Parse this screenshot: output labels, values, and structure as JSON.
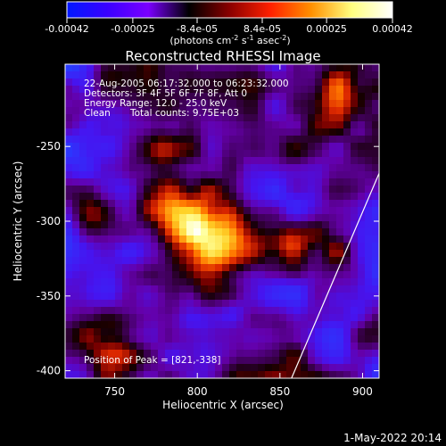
{
  "colorbar": {
    "ticks": [
      "-0.00042",
      "-0.00025",
      "-8.4e-05",
      "8.4e-05",
      "0.00025",
      "0.00042"
    ],
    "unit_main": "(photons cm",
    "unit_sup1": "-2",
    "unit_mid1": " s",
    "unit_sup2": "-1",
    "unit_mid2": " asec",
    "unit_sup3": "-2",
    "unit_end": ")",
    "colors": [
      "#0018ff",
      "#3a00ff",
      "#7a00ff",
      "#000000",
      "#8a0000",
      "#ff2000",
      "#ff9000",
      "#ffff80",
      "#ffffff"
    ]
  },
  "chart_data": {
    "type": "heatmap",
    "title": "Reconstructed RHESSI Image",
    "xlabel": "Heliocentric X (arcsec)",
    "ylabel": "Heliocentric Y (arcsec)",
    "xlim": [
      720,
      910
    ],
    "ylim": [
      -405,
      -195
    ],
    "xticks": [
      750,
      800,
      850,
      900
    ],
    "yticks": [
      -250,
      -300,
      -350,
      -400
    ],
    "annotations": {
      "time": "22-Aug-2005 06:17:32.000 to 06:23:32.000",
      "detectors": "Detectors: 3F 4F 5F 6F 7F 8F, Att 0",
      "energy": "Energy Range: 12.0 - 25.0 keV",
      "method": "Clean",
      "counts": "Total counts: 9.75E+03",
      "peak": "Position of Peak = [821,-338]"
    },
    "peak": [
      821,
      -338
    ],
    "limb_line": [
      [
        857,
        -405
      ],
      [
        910,
        -268
      ]
    ],
    "grid": false
  },
  "footer": {
    "timestamp": "1-May-2022 20:14"
  }
}
